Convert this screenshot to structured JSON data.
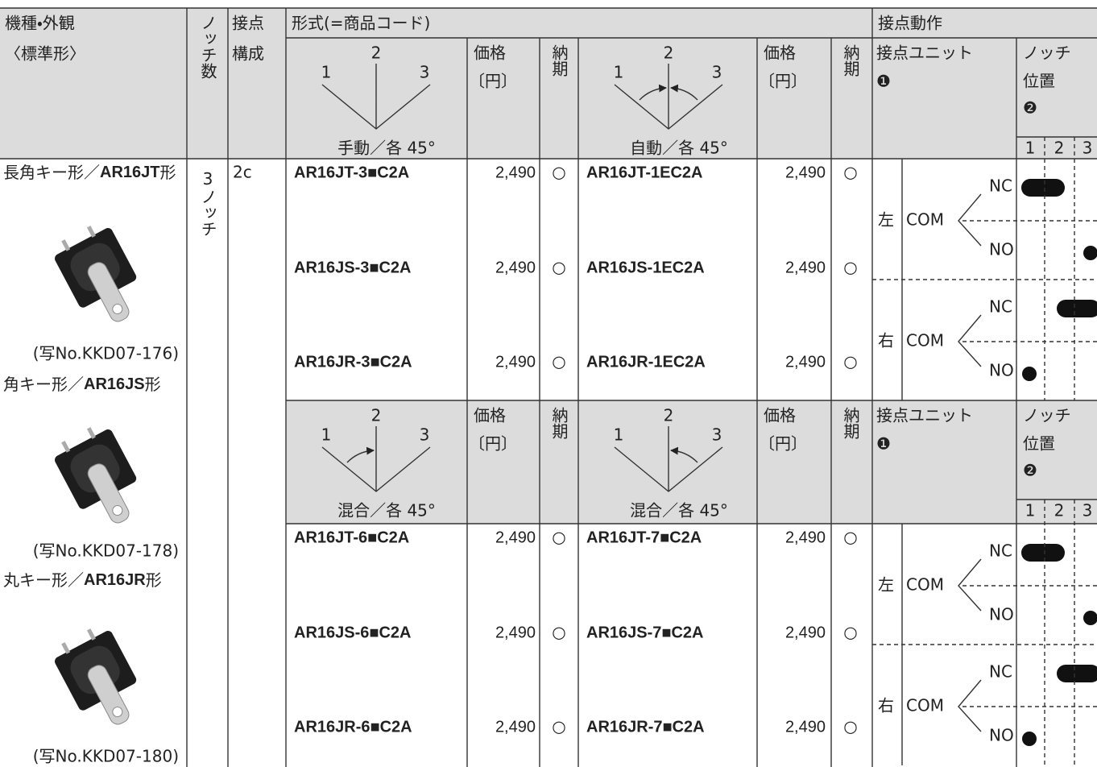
{
  "header": {
    "model": "機種・外観",
    "model_sub": "〈標準形〉",
    "notches": "ノッチ数",
    "contacts_1": "接点",
    "contacts_2": "構成",
    "format": "形式(=商品コード)",
    "action": "接点動作"
  },
  "models": [
    {
      "name": "長角キー形／",
      "code": "AR16JT",
      "suffix": "形",
      "caption": "(写No.KKD07-176)"
    },
    {
      "name": "角キー形／",
      "code": "AR16JS",
      "suffix": "形",
      "caption": "(写No.KKD07-178)"
    },
    {
      "name": "丸キー形／",
      "code": "AR16JR",
      "suffix": "形",
      "caption": "(写No.KKD07-180)"
    }
  ],
  "notch_count": "3ノッチ",
  "contact_config": "2c",
  "groups": [
    {
      "formats": [
        {
          "labels": [
            "1",
            "2",
            "3"
          ],
          "caption": "手動／各 45°",
          "price": "価格",
          "price_unit": "〔円〕",
          "delivery": "納期"
        },
        {
          "labels": [
            "1",
            "2",
            "3"
          ],
          "caption": "自動／各 45°",
          "price": "価格",
          "price_unit": "〔円〕",
          "delivery": "納期"
        }
      ],
      "unit": "接点ユニット",
      "unit_mark": "❶",
      "notch_1": "ノッチ",
      "notch_2": "位置",
      "notch_mark": "❷",
      "positions": [
        "1",
        "2",
        "3"
      ],
      "rows": [
        [
          {
            "code": "AR16JT-3■C2A",
            "price": "2,490",
            "delivery": "○"
          },
          {
            "code": "AR16JT-1EC2A",
            "price": "2,490",
            "delivery": "○"
          }
        ],
        [
          {
            "code": "AR16JS-3■C2A",
            "price": "2,490",
            "delivery": "○"
          },
          {
            "code": "AR16JS-1EC2A",
            "price": "2,490",
            "delivery": "○"
          }
        ],
        [
          {
            "code": "AR16JR-3■C2A",
            "price": "2,490",
            "delivery": "○"
          },
          {
            "code": "AR16JR-1EC2A",
            "price": "2,490",
            "delivery": "○"
          }
        ]
      ],
      "action": [
        {
          "side": "左",
          "com": "COM",
          "nc": "NC",
          "no": "NO"
        },
        {
          "side": "右",
          "com": "COM",
          "nc": "NC",
          "no": "NO"
        }
      ]
    },
    {
      "formats": [
        {
          "labels": [
            "1",
            "2",
            "3"
          ],
          "caption": "混合／各 45°",
          "price": "価格",
          "price_unit": "〔円〕",
          "delivery": "納期"
        },
        {
          "labels": [
            "1",
            "2",
            "3"
          ],
          "caption": "混合／各 45°",
          "price": "価格",
          "price_unit": "〔円〕",
          "delivery": "納期"
        }
      ],
      "unit": "接点ユニット",
      "unit_mark": "❶",
      "notch_1": "ノッチ",
      "notch_2": "位置",
      "notch_mark": "❷",
      "positions": [
        "1",
        "2",
        "3"
      ],
      "rows": [
        [
          {
            "code": "AR16JT-6■C2A",
            "price": "2,490",
            "delivery": "○"
          },
          {
            "code": "AR16JT-7■C2A",
            "price": "2,490",
            "delivery": "○"
          }
        ],
        [
          {
            "code": "AR16JS-6■C2A",
            "price": "2,490",
            "delivery": "○"
          },
          {
            "code": "AR16JS-7■C2A",
            "price": "2,490",
            "delivery": "○"
          }
        ],
        [
          {
            "code": "AR16JR-6■C2A",
            "price": "2,490",
            "delivery": "○"
          },
          {
            "code": "AR16JR-7■C2A",
            "price": "2,490",
            "delivery": "○"
          }
        ]
      ],
      "action": [
        {
          "side": "左",
          "com": "COM",
          "nc": "NC",
          "no": "NO"
        },
        {
          "side": "右",
          "com": "COM",
          "nc": "NC",
          "no": "NO"
        }
      ]
    }
  ]
}
